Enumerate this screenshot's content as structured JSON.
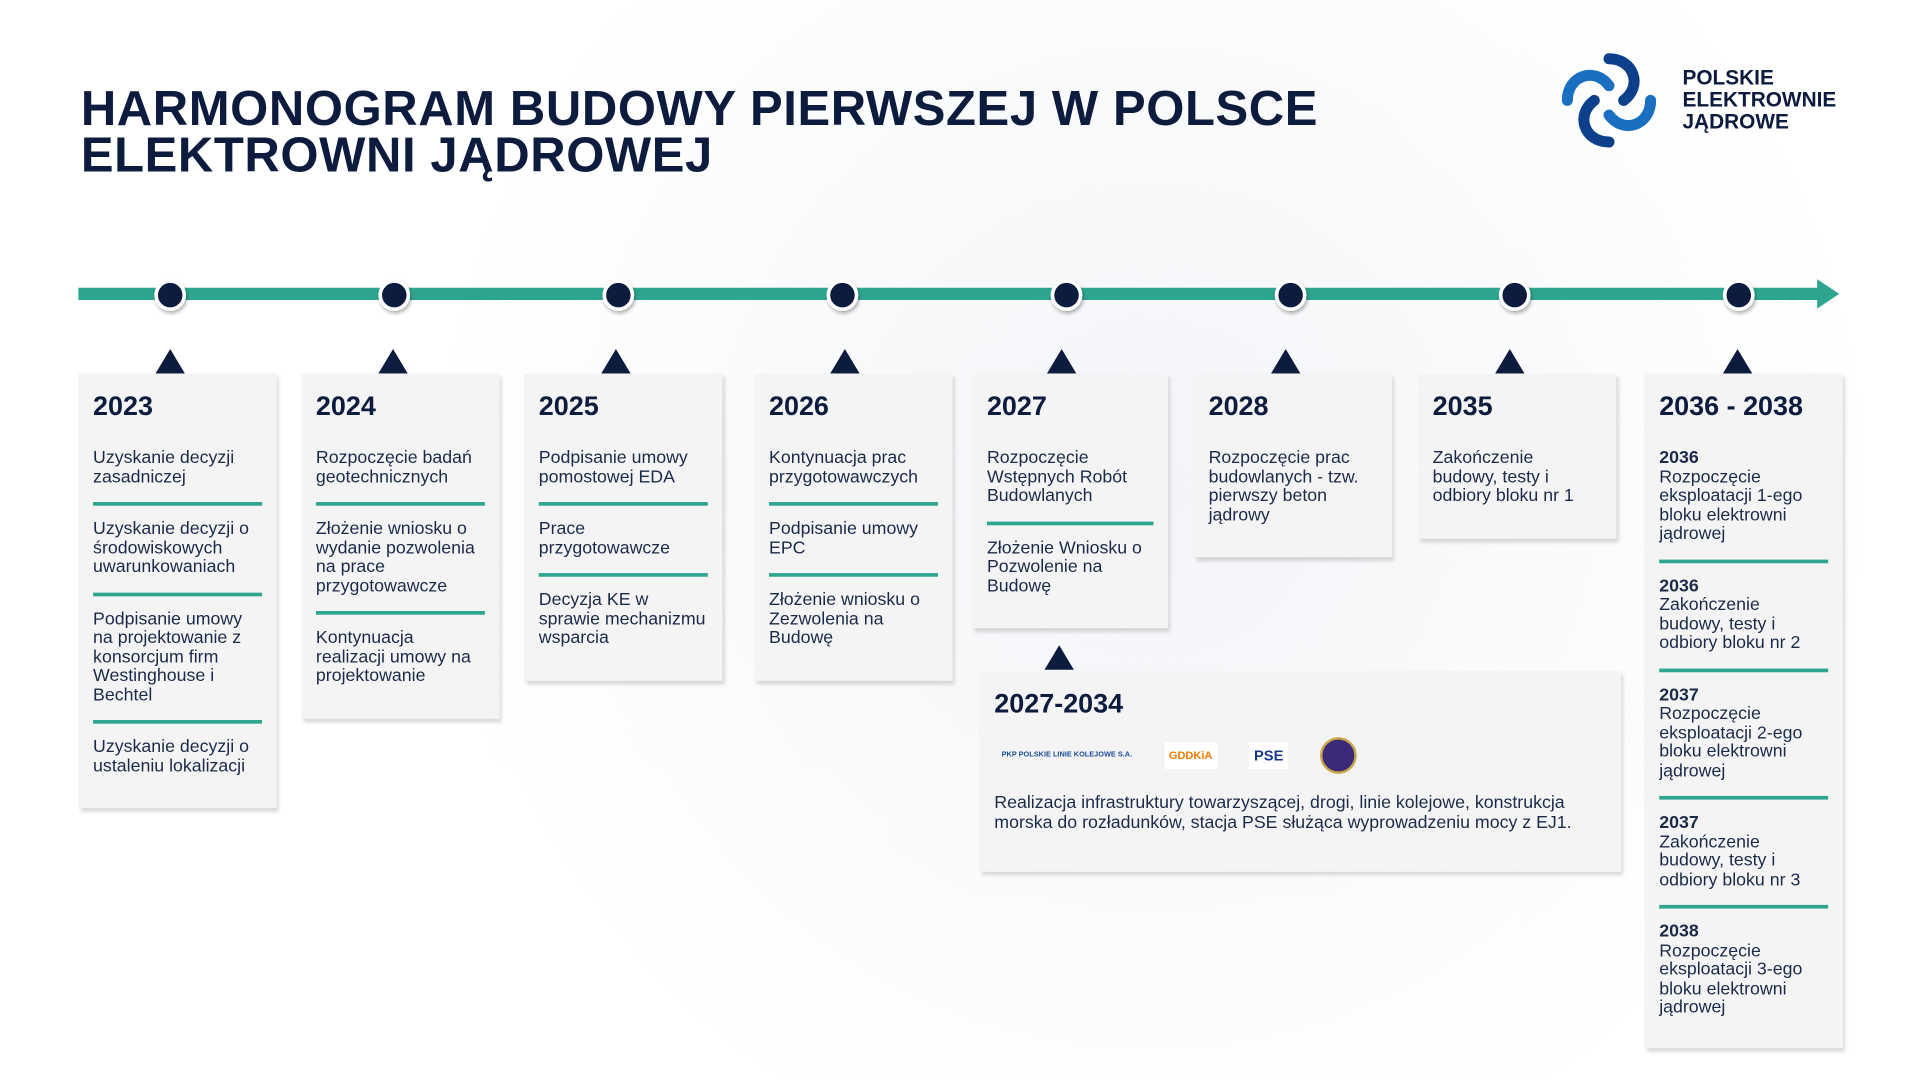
{
  "title": [
    "HARMONOGRAM BUDOWY PIERWSZEJ W POLSCE",
    "ELEKTROWNI JĄDROWEJ"
  ],
  "brand": {
    "lines": [
      "POLSKIE",
      "ELEKTROWNIE",
      "JĄDROWE"
    ],
    "colors": {
      "navy": "#0d1b3e",
      "teal": "#2ea58f",
      "blue": "#1a6fc0"
    }
  },
  "milestones": [
    {
      "year": "2023",
      "items": [
        "Uzyskanie decyzji zasadniczej",
        "Uzyskanie decyzji o środowiskowych uwarunkowaniach",
        "Podpisanie umowy na projektowanie z konsorcjum firm Westinghouse i Bechtel",
        "Uzyskanie decyzji o ustaleniu lokalizacji"
      ]
    },
    {
      "year": "2024",
      "items": [
        "Rozpoczęcie badań geotechnicznych",
        "Złożenie wniosku o  wydanie pozwolenia na prace przygotowawcze",
        "Kontynuacja realizacji umowy na projektowanie"
      ]
    },
    {
      "year": "2025",
      "items": [
        "Podpisanie umowy pomostowej EDA",
        "Prace przygotowawcze",
        "Decyzja KE w sprawie mechanizmu wsparcia"
      ]
    },
    {
      "year": "2026",
      "items": [
        "Kontynuacja prac przygotowawczych",
        "Podpisanie umowy EPC",
        "Złożenie wniosku o Zezwolenia na Budowę"
      ]
    },
    {
      "year": "2027",
      "items": [
        "Rozpoczęcie Wstępnych Robót Budowlanych",
        "Złożenie Wniosku o Pozwolenie na Budowę"
      ]
    },
    {
      "year": "2028",
      "items": [
        "Rozpoczęcie prac budowlanych - tzw. pierwszy beton jądrowy"
      ]
    },
    {
      "year": "2035",
      "items": [
        "Zakończenie budowy, testy i odbiory bloku nr 1"
      ]
    },
    {
      "year": "2036 - 2038",
      "items": [
        {
          "year": "2036",
          "text": "Rozpoczęcie eksploatacji 1-ego bloku elektrowni jądrowej"
        },
        {
          "year": "2036",
          "text": "Zakończenie budowy, testy i odbiory bloku nr 2"
        },
        {
          "year": "2037",
          "text": "Rozpoczęcie eksploatacji 2-ego bloku elektrowni jądrowej"
        },
        {
          "year": "2037",
          "text": "Zakończenie budowy, testy i odbiory bloku nr 3"
        },
        {
          "year": "2038",
          "text": "Rozpoczęcie eksploatacji 3-ego bloku elektrowni jądrowej"
        }
      ]
    }
  ],
  "infra": {
    "year": "2027-2034",
    "logos": [
      "PKP POLSKIE LINIE KOLEJOWE S.A.",
      "GDDKiA",
      "PSE"
    ],
    "text": "Realizacja infrastruktury towarzyszącej, drogi, linie kolejowe, konstrukcja morska do rozładunków, stacja PSE służąca wyprowadzeniu mocy z EJ1."
  }
}
